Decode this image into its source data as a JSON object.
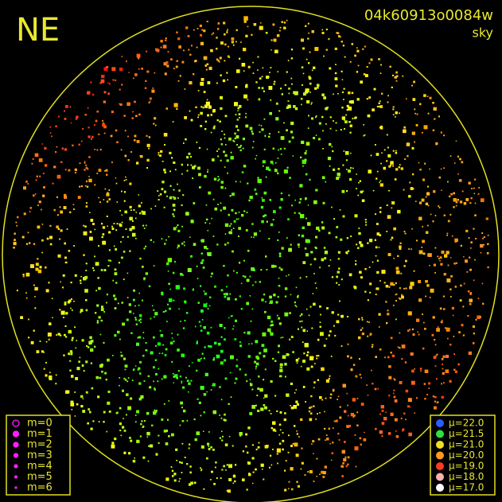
{
  "header": {
    "title": "NE",
    "id": "04k60913o0084w",
    "subtitle": "sky"
  },
  "magnitude_legend": {
    "color": "#ff20ff",
    "items": [
      "m=0",
      "m=1",
      "m=2",
      "m=3",
      "m=4",
      "m=5",
      "m=6"
    ]
  },
  "surface_brightness_legend": {
    "items": [
      {
        "label": "μ=22.0",
        "color": "#2a5cff"
      },
      {
        "label": "μ=21.5",
        "color": "#30e040"
      },
      {
        "label": "μ=21.0",
        "color": "#f0e020"
      },
      {
        "label": "μ=20.0",
        "color": "#ff9a20"
      },
      {
        "label": "μ=19.0",
        "color": "#ff3a20"
      },
      {
        "label": "μ=18.0",
        "color": "#ffb0b0"
      },
      {
        "label": "μ=17.0",
        "color": "#ffffff"
      }
    ]
  }
}
